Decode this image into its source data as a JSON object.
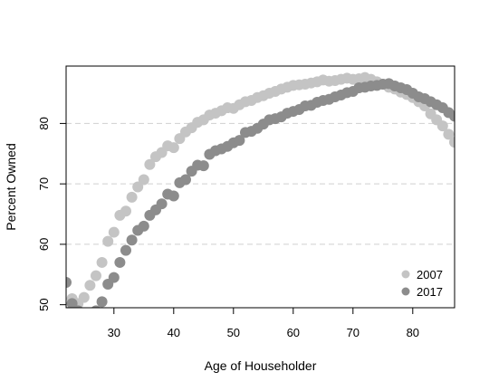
{
  "chart_data": {
    "type": "scatter",
    "title": "",
    "xlabel": "Age of Householder",
    "ylabel": "Percent Owned",
    "xlim": [
      22,
      87
    ],
    "ylim": [
      49.5,
      89.5
    ],
    "x_ticks": [
      30,
      40,
      50,
      60,
      70,
      80
    ],
    "y_ticks": [
      50,
      60,
      70,
      80
    ],
    "grid": "horizontal dashed at y ticks 60, 70, 80",
    "legend_position": "bottom-right",
    "series": [
      {
        "name": "2007",
        "color": "#c4c4c4",
        "x": [
          22,
          23,
          24,
          25,
          26,
          27,
          28,
          29,
          30,
          31,
          32,
          33,
          34,
          35,
          36,
          37,
          38,
          39,
          40,
          41,
          42,
          43,
          44,
          45,
          46,
          47,
          48,
          49,
          50,
          51,
          52,
          53,
          54,
          55,
          56,
          57,
          58,
          59,
          60,
          61,
          62,
          63,
          64,
          65,
          66,
          67,
          68,
          69,
          70,
          71,
          72,
          73,
          74,
          75,
          76,
          77,
          78,
          79,
          80,
          81,
          82,
          83,
          84,
          85,
          86,
          87
        ],
        "y": [
          48.8,
          51.0,
          50.2,
          51.2,
          53.2,
          54.8,
          57.0,
          60.5,
          62.0,
          64.8,
          65.5,
          67.8,
          69.5,
          70.7,
          73.2,
          74.5,
          75.2,
          76.3,
          76.0,
          77.5,
          78.6,
          79.3,
          80.2,
          80.6,
          81.4,
          81.7,
          82.1,
          82.6,
          82.5,
          83.1,
          83.6,
          83.8,
          84.3,
          84.6,
          85.0,
          85.3,
          85.7,
          86.0,
          86.3,
          86.4,
          86.5,
          86.7,
          86.9,
          87.2,
          87.0,
          87.1,
          87.3,
          87.5,
          87.3,
          87.4,
          87.6,
          87.3,
          86.9,
          86.5,
          86.0,
          85.7,
          85.2,
          84.8,
          84.3,
          83.6,
          82.9,
          81.6,
          80.6,
          79.6,
          78.2,
          76.9
        ]
      },
      {
        "name": "2017",
        "color": "#8c8c8c",
        "x": [
          22,
          23,
          24,
          25,
          26,
          27,
          28,
          29,
          30,
          31,
          32,
          33,
          34,
          35,
          36,
          37,
          38,
          39,
          40,
          41,
          42,
          43,
          44,
          45,
          46,
          47,
          48,
          49,
          50,
          51,
          52,
          53,
          54,
          55,
          56,
          57,
          58,
          59,
          60,
          61,
          62,
          63,
          64,
          65,
          66,
          67,
          68,
          69,
          70,
          71,
          72,
          73,
          74,
          75,
          76,
          77,
          78,
          79,
          80,
          81,
          82,
          83,
          84,
          85,
          86,
          87
        ],
        "y": [
          53.7,
          50.2,
          49.0,
          48.3,
          48.5,
          49.0,
          50.5,
          53.4,
          54.5,
          57.0,
          59.0,
          60.7,
          62.3,
          63.0,
          64.8,
          65.7,
          66.7,
          68.3,
          68.0,
          70.2,
          70.7,
          72.1,
          73.1,
          73.0,
          74.9,
          75.5,
          75.8,
          76.2,
          76.8,
          77.2,
          78.5,
          78.7,
          79.2,
          79.9,
          80.6,
          80.8,
          81.1,
          81.7,
          82.0,
          82.3,
          82.9,
          83.0,
          83.5,
          83.8,
          84.0,
          84.4,
          84.7,
          85.1,
          85.3,
          85.9,
          86.0,
          86.2,
          86.3,
          86.5,
          86.6,
          86.2,
          85.9,
          85.6,
          85.0,
          84.4,
          84.1,
          83.6,
          83.1,
          82.6,
          81.8,
          81.2
        ]
      }
    ]
  }
}
